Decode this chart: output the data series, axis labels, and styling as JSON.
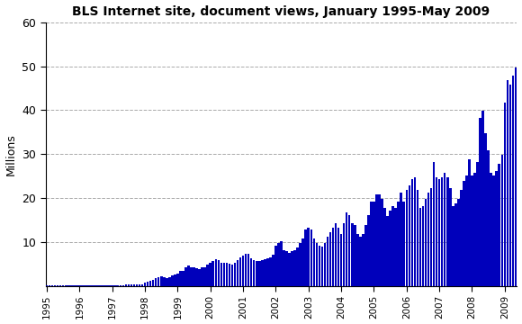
{
  "title": "BLS Internet site, document views, January 1995-May 2009",
  "ylabel": "Millions",
  "bar_color": "#0000BB",
  "background_color": "#ffffff",
  "plot_bg_color": "#ffffff",
  "ylim": [
    0,
    60
  ],
  "yticks": [
    10,
    20,
    30,
    40,
    50,
    60
  ],
  "grid_color": "#aaaaaa",
  "xtick_years": [
    "1995",
    "1996",
    "1997",
    "1998",
    "1999",
    "2000",
    "2001",
    "2002",
    "2003",
    "2004",
    "2005",
    "2006",
    "2007",
    "2008",
    "2009"
  ],
  "values": [
    0.05,
    0.05,
    0.05,
    0.05,
    0.05,
    0.05,
    0.05,
    0.05,
    0.05,
    0.05,
    0.05,
    0.05,
    0.05,
    0.05,
    0.05,
    0.05,
    0.05,
    0.05,
    0.05,
    0.05,
    0.05,
    0.05,
    0.05,
    0.1,
    0.1,
    0.1,
    0.1,
    0.2,
    0.2,
    0.3,
    0.4,
    0.3,
    0.3,
    0.3,
    0.3,
    0.3,
    0.7,
    0.9,
    1.1,
    1.4,
    1.7,
    1.9,
    2.1,
    1.9,
    1.7,
    1.9,
    2.3,
    2.6,
    2.8,
    3.3,
    3.3,
    4.3,
    4.6,
    4.3,
    4.3,
    4.0,
    3.8,
    4.3,
    4.3,
    4.8,
    5.3,
    5.6,
    6.0,
    5.8,
    5.3,
    5.3,
    5.3,
    5.0,
    4.8,
    5.3,
    5.8,
    6.5,
    6.8,
    7.2,
    7.2,
    6.2,
    5.8,
    5.6,
    5.6,
    5.8,
    6.0,
    6.2,
    6.5,
    7.0,
    9.2,
    9.8,
    10.2,
    8.2,
    7.8,
    7.5,
    7.8,
    8.2,
    8.8,
    9.8,
    10.8,
    12.8,
    13.2,
    12.8,
    10.8,
    9.8,
    9.2,
    9.0,
    9.8,
    11.2,
    12.2,
    13.2,
    14.2,
    13.2,
    11.8,
    14.2,
    16.8,
    16.2,
    14.2,
    13.8,
    11.8,
    11.2,
    11.8,
    13.8,
    16.2,
    19.2,
    19.2,
    20.8,
    20.8,
    19.8,
    17.8,
    15.8,
    17.2,
    18.2,
    17.8,
    19.2,
    21.2,
    19.2,
    21.8,
    22.8,
    24.2,
    24.8,
    21.8,
    17.8,
    18.2,
    19.8,
    21.2,
    22.2,
    28.2,
    24.8,
    24.2,
    24.8,
    25.8,
    24.8,
    22.2,
    18.2,
    18.8,
    19.8,
    21.8,
    23.8,
    25.2,
    28.8,
    25.2,
    25.8,
    28.2,
    38.2,
    39.8,
    34.8,
    30.8,
    25.8,
    25.2,
    26.2,
    27.8,
    29.8,
    41.8,
    46.8,
    45.8,
    47.8,
    49.8
  ]
}
